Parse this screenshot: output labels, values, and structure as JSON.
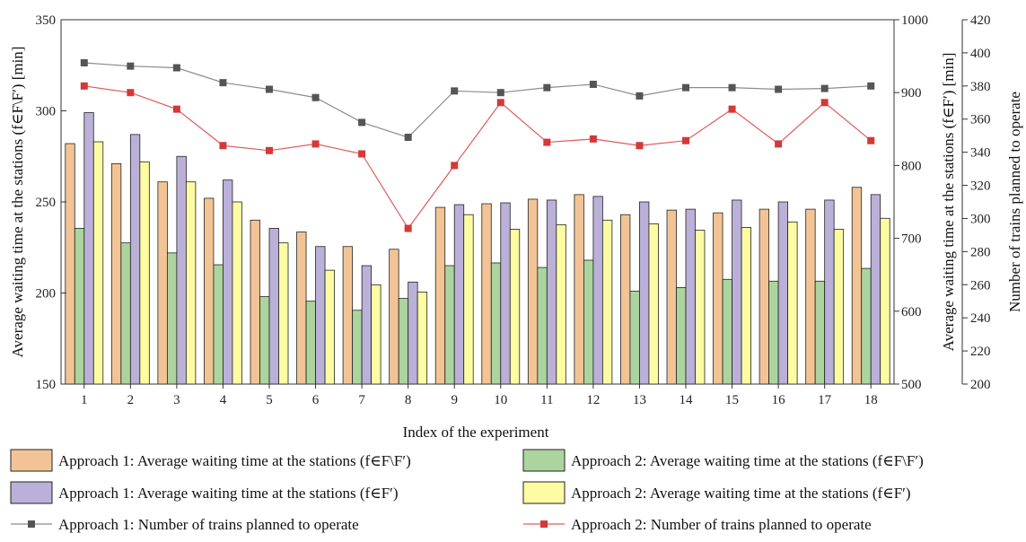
{
  "chart_data": {
    "type": "bar",
    "xlabel": "Index of the experiment",
    "ylabel_left": "Average waiting time at the stations (f∈F\\F′) [min]",
    "ylabel_right1": "Average waiting time at the stations (f∈F′) [min]",
    "ylabel_right2": "Number of trains planned to operate",
    "categories": [
      "1",
      "2",
      "3",
      "4",
      "5",
      "6",
      "7",
      "8",
      "9",
      "10",
      "11",
      "12",
      "13",
      "14",
      "15",
      "16",
      "17",
      "18"
    ],
    "axes": {
      "left": {
        "min": 150,
        "max": 350,
        "ticks": [
          150,
          200,
          250,
          300,
          350
        ]
      },
      "right1": {
        "min": 500,
        "max": 1000,
        "ticks": [
          500,
          600,
          700,
          800,
          900,
          1000
        ]
      },
      "right2": {
        "min": 200,
        "max": 420,
        "ticks": [
          200,
          220,
          240,
          260,
          280,
          300,
          320,
          340,
          360,
          380,
          400,
          420
        ]
      }
    },
    "series": [
      {
        "name": "Approach 1: Average waiting time at the stations (f∈F\\F′)",
        "kind": "bar",
        "axis": "left",
        "color": "#f2c495",
        "values": [
          282,
          271,
          261,
          252,
          240,
          233.5,
          225.5,
          224,
          247,
          249,
          251.5,
          254,
          243,
          245.5,
          244,
          246,
          246,
          258
        ]
      },
      {
        "name": "Approach 2: Average waiting time at the stations (f∈F\\F′)",
        "kind": "bar",
        "axis": "left",
        "color": "#acd49f",
        "values": [
          235.5,
          227.5,
          222,
          215.5,
          198,
          195.5,
          190.5,
          197,
          215,
          216.5,
          214,
          218,
          201,
          203,
          207.5,
          206.5,
          206.5,
          213.5
        ]
      },
      {
        "name": "Approach 1: Average waiting time at the stations (f∈F′)",
        "kind": "bar",
        "axis": "left",
        "color": "#bab0d8",
        "values": [
          299,
          287,
          275,
          262,
          235.5,
          225.5,
          215,
          206,
          248.5,
          249.5,
          251,
          253,
          250,
          246,
          251,
          250,
          251,
          254
        ]
      },
      {
        "name": "Approach 2: Average waiting time at the stations (f∈F′)",
        "kind": "bar",
        "axis": "left",
        "color": "#fdfca2",
        "values": [
          283,
          272,
          261,
          250,
          227.5,
          212.5,
          204.5,
          200.5,
          243,
          235,
          237.5,
          240,
          238,
          234.5,
          236,
          239,
          235,
          241
        ]
      },
      {
        "name": "Approach 1: Number of trains planned to operate",
        "kind": "line",
        "axis": "right2",
        "color": "#8c8c8c",
        "marker_color": "#555555",
        "values": [
          394,
          392,
          391,
          382,
          378,
          373,
          358,
          349,
          377,
          376,
          379,
          381,
          374,
          379,
          379,
          378,
          378.5,
          380
        ]
      },
      {
        "name": "Approach 2: Number of trains planned to operate",
        "kind": "line",
        "axis": "right2",
        "color": "#e05a5a",
        "marker_color": "#d43838",
        "values": [
          380,
          376,
          366,
          344,
          341,
          345,
          339,
          294,
          332,
          370,
          346,
          348,
          344,
          347,
          366,
          345,
          370,
          347
        ]
      }
    ],
    "legend": {
      "placement": "bottom",
      "order": [
        0,
        1,
        2,
        3,
        4,
        5
      ]
    }
  }
}
